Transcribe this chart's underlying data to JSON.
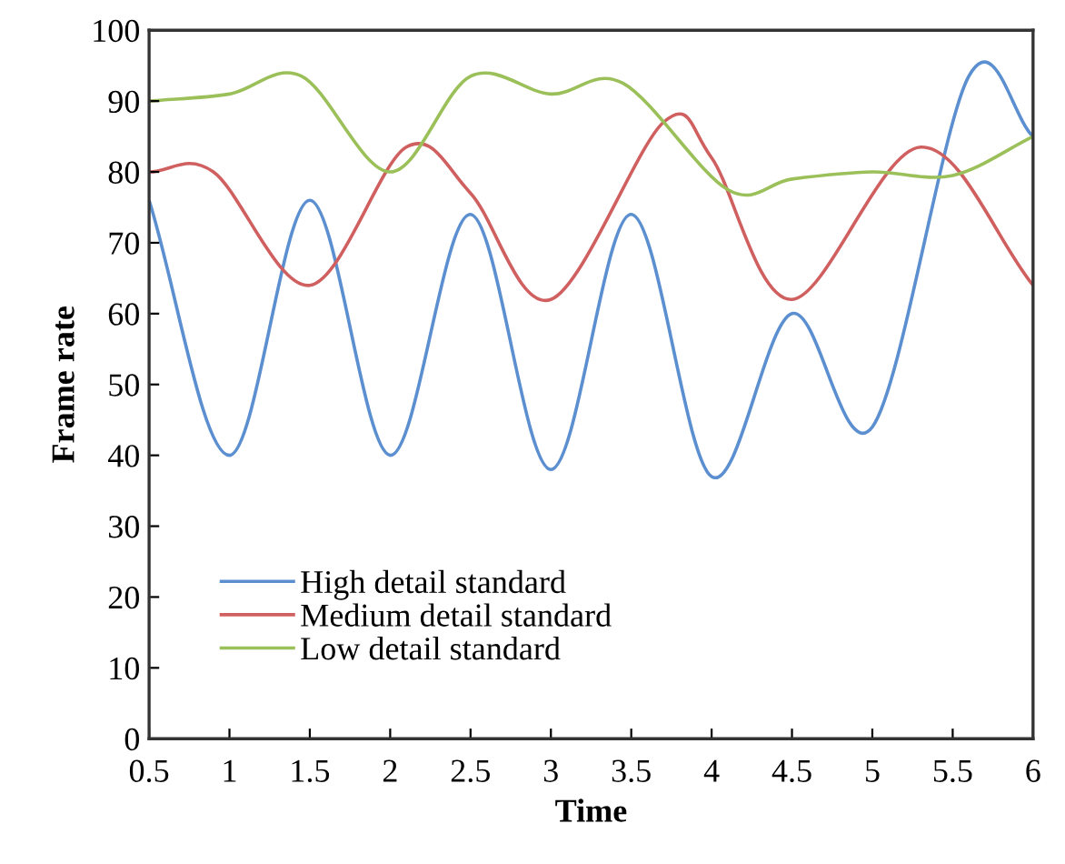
{
  "chart_data": {
    "type": "line",
    "xlabel": "Time",
    "ylabel": "Frame rate",
    "xlim": [
      0.5,
      6
    ],
    "xticks": [
      0.5,
      1,
      1.5,
      2,
      2.5,
      3,
      3.5,
      4,
      4.5,
      5,
      5.5,
      6
    ],
    "ylim": [
      0,
      100
    ],
    "yticks": [
      0,
      10,
      20,
      30,
      40,
      50,
      60,
      70,
      80,
      90,
      100
    ],
    "grid": false,
    "legend": "bottom left",
    "marker": "none",
    "line_style": "solid",
    "series": [
      {
        "name": "High detail standard",
        "color": "#5b8fd0",
        "x": [
          0.5,
          1,
          1.5,
          2,
          2.5,
          3,
          3.5,
          4,
          4.5,
          5,
          5.6,
          6
        ],
        "values": [
          76,
          40,
          76,
          40,
          74,
          38,
          74,
          37,
          60,
          44,
          93.5,
          85
        ]
      },
      {
        "name": "Medium detail standard",
        "color": "#d06060",
        "x": [
          0.5,
          0.9,
          1.5,
          2.1,
          2.5,
          3,
          3.7,
          4,
          4.5,
          5.3,
          6
        ],
        "values": [
          80,
          80,
          64,
          83.5,
          77,
          62,
          87,
          82,
          62,
          83.5,
          64
        ]
      },
      {
        "name": "Low detail standard",
        "color": "#9bc05a",
        "x": [
          0.5,
          1,
          1.45,
          2,
          2.5,
          3,
          3.45,
          4.1,
          4.5,
          5,
          5.5,
          6
        ],
        "values": [
          90,
          91,
          93.5,
          80,
          93.5,
          91,
          92.5,
          77.5,
          79,
          80,
          79.5,
          85
        ]
      }
    ]
  }
}
